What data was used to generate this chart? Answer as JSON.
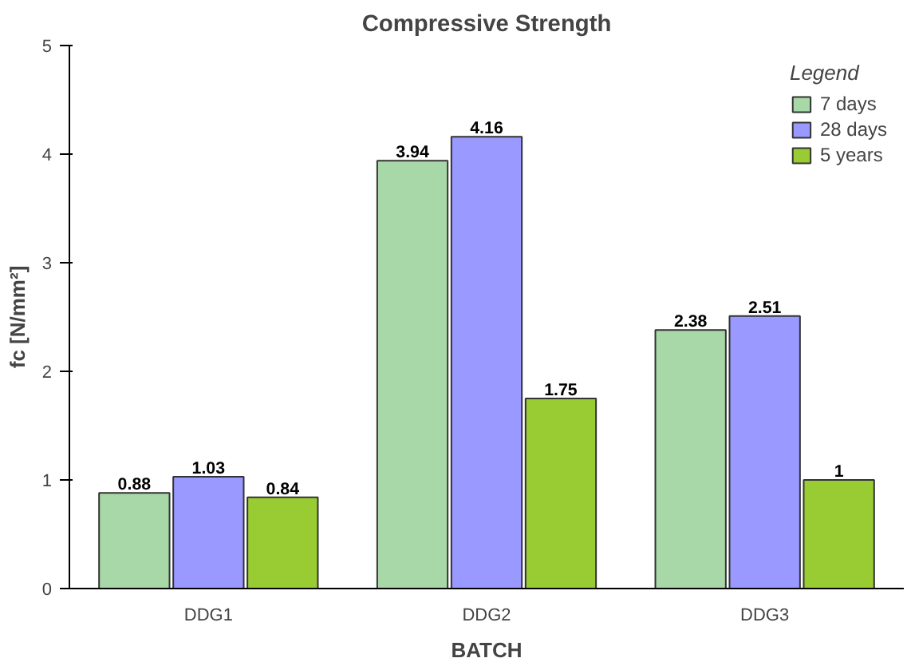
{
  "chart_data": {
    "type": "bar",
    "title": "Compressive Strength",
    "ylabel": "fc [N/mm²]",
    "xlabel": "BATCH",
    "legend_title": "Legend",
    "categories": [
      "DDG1",
      "DDG2",
      "DDG3"
    ],
    "series": [
      {
        "name": "7 days",
        "color": "#a8d8a8",
        "values": [
          0.88,
          3.94,
          2.38
        ]
      },
      {
        "name": "28 days",
        "color": "#9999ff",
        "values": [
          1.03,
          4.16,
          2.51
        ]
      },
      {
        "name": "5 years",
        "color": "#99cc33",
        "values": [
          0.84,
          1.75,
          1
        ]
      }
    ],
    "ylim": [
      0,
      5
    ],
    "yticks": [
      0,
      1,
      2,
      3,
      4,
      5
    ],
    "grid": false,
    "legend": "top right",
    "data_labels": true
  }
}
